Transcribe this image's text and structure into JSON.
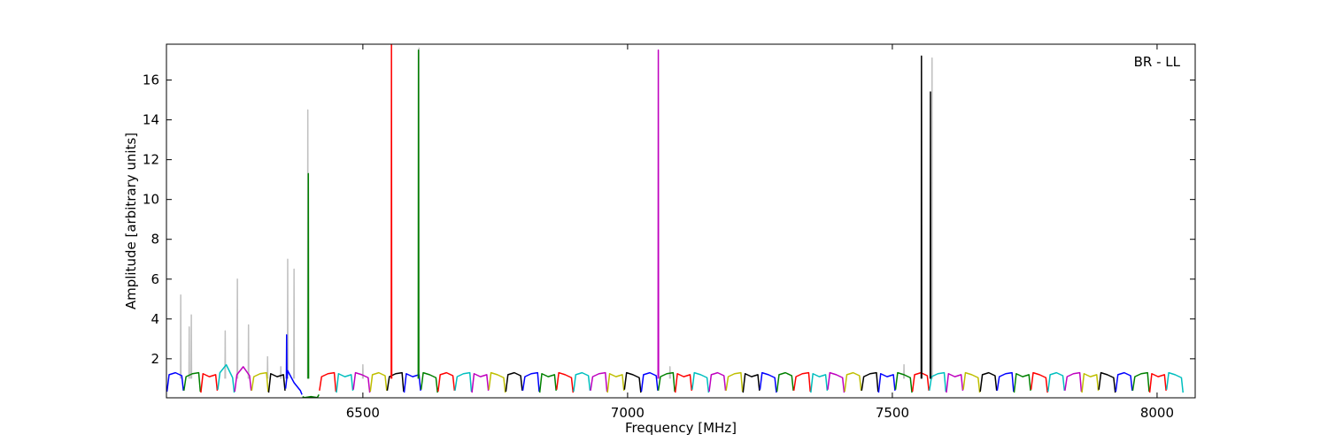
{
  "chart_data": {
    "type": "line",
    "xlabel": "Frequency [MHz]",
    "ylabel": "Amplitude [arbitrary units]",
    "annotation": "BR - LL",
    "xlim": [
      6129,
      8072
    ],
    "ylim": [
      0.04,
      17.8
    ],
    "xticks": [
      6500,
      7000,
      7500,
      8000
    ],
    "yticks": [
      2,
      4,
      6,
      8,
      10,
      12,
      14,
      16
    ],
    "grid": false,
    "series": [
      {
        "color": "#c0c0c0",
        "x": [
          6155.5,
          6156,
          6156.5,
          6157,
          6171.5,
          6172,
          6172.5,
          6173,
          6175.5,
          6176,
          6176.5,
          6177,
          6239.5,
          6240,
          6240.5,
          6241,
          6262.5,
          6263,
          6263.5,
          6264,
          6283.5,
          6284,
          6284.5,
          6285,
          6319.5,
          6320,
          6320.5,
          6321,
          6344.5,
          6345,
          6345.5,
          6346,
          6357.5,
          6358,
          6358.5,
          6359,
          6369.5,
          6370,
          6370.5,
          6371,
          6395.5,
          6396,
          6396.5,
          6397,
          6499.5,
          6500,
          6500.5,
          6501,
          6605.5,
          6606,
          6606.5,
          6607,
          7079.5,
          7080,
          7080.5,
          7081,
          7521.5,
          7522,
          7522.5,
          7523,
          7574.5,
          7575,
          7575.5
        ],
        "values": [
          1.0,
          5.2,
          1.0,
          null,
          1.0,
          3.6,
          1.0,
          null,
          1.0,
          4.2,
          1.0,
          null,
          1.0,
          3.4,
          1.0,
          null,
          1.0,
          6.0,
          1.0,
          null,
          1.0,
          3.7,
          1.0,
          null,
          1.0,
          2.1,
          1.0,
          null,
          1.0,
          1.6,
          1.0,
          null,
          1.0,
          7.0,
          1.0,
          null,
          1.0,
          6.5,
          1.0,
          null,
          1.0,
          14.5,
          1.0,
          null,
          1.0,
          1.7,
          1.0,
          null,
          1.0,
          17.6,
          1.0,
          null,
          1.0,
          1.6,
          1.0,
          null,
          1.0,
          1.7,
          1.0,
          null,
          1.0,
          17.1,
          1.0
        ]
      },
      {
        "color": "#0000ff",
        "x": [
          6130,
          6134,
          6146,
          6158,
          6161
        ],
        "values": [
          0.35,
          1.2,
          1.3,
          1.15,
          0.4
        ]
      },
      {
        "color": "#008000",
        "x": [
          6162,
          6166,
          6178,
          6190,
          6193
        ],
        "values": [
          0.4,
          1.1,
          1.25,
          1.3,
          0.35
        ]
      },
      {
        "color": "#ff0000",
        "x": [
          6194,
          6198,
          6210,
          6222,
          6225
        ],
        "values": [
          0.3,
          1.25,
          1.1,
          1.2,
          0.4
        ]
      },
      {
        "color": "#00bfbf",
        "x": [
          6226,
          6230,
          6242,
          6254,
          6257
        ],
        "values": [
          0.45,
          1.3,
          1.7,
          1.05,
          0.3
        ]
      },
      {
        "color": "#bf00bf",
        "x": [
          6258,
          6262,
          6274,
          6286,
          6289
        ],
        "values": [
          0.35,
          1.2,
          1.6,
          1.15,
          0.4
        ]
      },
      {
        "color": "#bfbf00",
        "x": [
          6290,
          6294,
          6306,
          6318,
          6321
        ],
        "values": [
          0.4,
          1.1,
          1.25,
          1.3,
          0.35
        ]
      },
      {
        "color": "#000000",
        "x": [
          6322,
          6326,
          6338,
          6350,
          6353
        ],
        "values": [
          0.3,
          1.25,
          1.1,
          1.2,
          0.4
        ]
      },
      {
        "color": "#0000ff",
        "x": [
          6354,
          6358,
          6370,
          6382,
          6385
        ],
        "values": [
          0.5,
          1.4,
          0.8,
          0.4,
          0.2
        ]
      },
      {
        "color": "#008000",
        "x": [
          6386,
          6390,
          6402,
          6414,
          6417
        ],
        "values": [
          0.1,
          0.05,
          0.1,
          0.05,
          0.2
        ]
      },
      {
        "color": "#ff0000",
        "x": [
          6418,
          6422,
          6434,
          6446,
          6449
        ],
        "values": [
          0.4,
          1.1,
          1.25,
          1.3,
          0.35
        ]
      },
      {
        "color": "#00bfbf",
        "x": [
          6450,
          6454,
          6466,
          6478,
          6481
        ],
        "values": [
          0.3,
          1.25,
          1.1,
          1.2,
          0.4
        ]
      },
      {
        "color": "#bf00bf",
        "x": [
          6482,
          6486,
          6498,
          6510,
          6513
        ],
        "values": [
          0.45,
          1.3,
          1.2,
          1.05,
          0.3
        ]
      },
      {
        "color": "#bfbf00",
        "x": [
          6514,
          6518,
          6530,
          6542,
          6545
        ],
        "values": [
          0.35,
          1.2,
          1.3,
          1.15,
          0.4
        ]
      },
      {
        "color": "#000000",
        "x": [
          6546,
          6550,
          6562,
          6574,
          6577
        ],
        "values": [
          0.4,
          1.1,
          1.25,
          1.3,
          0.35
        ]
      },
      {
        "color": "#0000ff",
        "x": [
          6578,
          6582,
          6594,
          6606,
          6609
        ],
        "values": [
          0.3,
          1.25,
          1.1,
          1.2,
          0.4
        ]
      },
      {
        "color": "#008000",
        "x": [
          6610,
          6614,
          6626,
          6638,
          6641
        ],
        "values": [
          0.45,
          1.3,
          1.2,
          1.05,
          0.3
        ]
      },
      {
        "color": "#ff0000",
        "x": [
          6642,
          6646,
          6658,
          6670,
          6673
        ],
        "values": [
          0.35,
          1.2,
          1.3,
          1.15,
          0.4
        ]
      },
      {
        "color": "#00bfbf",
        "x": [
          6674,
          6678,
          6690,
          6702,
          6705
        ],
        "values": [
          0.4,
          1.1,
          1.25,
          1.3,
          0.35
        ]
      },
      {
        "color": "#bf00bf",
        "x": [
          6706,
          6710,
          6722,
          6734,
          6737
        ],
        "values": [
          0.3,
          1.25,
          1.1,
          1.2,
          0.4
        ]
      },
      {
        "color": "#bfbf00",
        "x": [
          6738,
          6742,
          6754,
          6766,
          6769
        ],
        "values": [
          0.45,
          1.3,
          1.2,
          1.05,
          0.3
        ]
      },
      {
        "color": "#000000",
        "x": [
          6770,
          6774,
          6786,
          6798,
          6801
        ],
        "values": [
          0.35,
          1.2,
          1.3,
          1.15,
          0.4
        ]
      },
      {
        "color": "#0000ff",
        "x": [
          6802,
          6806,
          6818,
          6830,
          6833
        ],
        "values": [
          0.4,
          1.1,
          1.25,
          1.3,
          0.35
        ]
      },
      {
        "color": "#008000",
        "x": [
          6834,
          6838,
          6850,
          6862,
          6865
        ],
        "values": [
          0.3,
          1.25,
          1.1,
          1.2,
          0.4
        ]
      },
      {
        "color": "#ff0000",
        "x": [
          6866,
          6870,
          6882,
          6894,
          6897
        ],
        "values": [
          0.45,
          1.3,
          1.2,
          1.05,
          0.3
        ]
      },
      {
        "color": "#00bfbf",
        "x": [
          6898,
          6902,
          6914,
          6926,
          6929
        ],
        "values": [
          0.35,
          1.2,
          1.3,
          1.15,
          0.4
        ]
      },
      {
        "color": "#bf00bf",
        "x": [
          6930,
          6934,
          6946,
          6958,
          6961
        ],
        "values": [
          0.4,
          1.1,
          1.25,
          1.3,
          0.35
        ]
      },
      {
        "color": "#bfbf00",
        "x": [
          6962,
          6966,
          6978,
          6990,
          6993
        ],
        "values": [
          0.3,
          1.25,
          1.1,
          1.2,
          0.4
        ]
      },
      {
        "color": "#000000",
        "x": [
          6994,
          6998,
          7010,
          7022,
          7025
        ],
        "values": [
          0.45,
          1.3,
          1.2,
          1.05,
          0.3
        ]
      },
      {
        "color": "#0000ff",
        "x": [
          7026,
          7030,
          7042,
          7054,
          7057
        ],
        "values": [
          0.35,
          1.2,
          1.3,
          1.15,
          0.4
        ]
      },
      {
        "color": "#008000",
        "x": [
          7058,
          7062,
          7074,
          7086,
          7089
        ],
        "values": [
          0.4,
          1.1,
          1.25,
          1.3,
          0.35
        ]
      },
      {
        "color": "#ff0000",
        "x": [
          7090,
          7094,
          7106,
          7118,
          7121
        ],
        "values": [
          0.3,
          1.25,
          1.1,
          1.2,
          0.4
        ]
      },
      {
        "color": "#00bfbf",
        "x": [
          7122,
          7126,
          7138,
          7150,
          7153
        ],
        "values": [
          0.45,
          1.3,
          1.2,
          1.05,
          0.3
        ]
      },
      {
        "color": "#bf00bf",
        "x": [
          7154,
          7158,
          7170,
          7182,
          7185
        ],
        "values": [
          0.35,
          1.2,
          1.3,
          1.15,
          0.4
        ]
      },
      {
        "color": "#bfbf00",
        "x": [
          7186,
          7190,
          7202,
          7214,
          7217
        ],
        "values": [
          0.4,
          1.1,
          1.25,
          1.3,
          0.35
        ]
      },
      {
        "color": "#000000",
        "x": [
          7218,
          7222,
          7234,
          7246,
          7249
        ],
        "values": [
          0.3,
          1.25,
          1.1,
          1.2,
          0.4
        ]
      },
      {
        "color": "#0000ff",
        "x": [
          7250,
          7254,
          7266,
          7278,
          7281
        ],
        "values": [
          0.45,
          1.3,
          1.2,
          1.05,
          0.3
        ]
      },
      {
        "color": "#008000",
        "x": [
          7282,
          7286,
          7298,
          7310,
          7313
        ],
        "values": [
          0.35,
          1.2,
          1.3,
          1.15,
          0.4
        ]
      },
      {
        "color": "#ff0000",
        "x": [
          7314,
          7318,
          7330,
          7342,
          7345
        ],
        "values": [
          0.4,
          1.1,
          1.25,
          1.3,
          0.35
        ]
      },
      {
        "color": "#00bfbf",
        "x": [
          7346,
          7350,
          7362,
          7374,
          7377
        ],
        "values": [
          0.3,
          1.25,
          1.1,
          1.2,
          0.4
        ]
      },
      {
        "color": "#bf00bf",
        "x": [
          7378,
          7382,
          7394,
          7406,
          7409
        ],
        "values": [
          0.45,
          1.3,
          1.2,
          1.05,
          0.3
        ]
      },
      {
        "color": "#bfbf00",
        "x": [
          7410,
          7414,
          7426,
          7438,
          7441
        ],
        "values": [
          0.35,
          1.2,
          1.3,
          1.15,
          0.4
        ]
      },
      {
        "color": "#000000",
        "x": [
          7442,
          7446,
          7458,
          7470,
          7473
        ],
        "values": [
          0.4,
          1.1,
          1.25,
          1.3,
          0.35
        ]
      },
      {
        "color": "#0000ff",
        "x": [
          7474,
          7478,
          7490,
          7502,
          7505
        ],
        "values": [
          0.3,
          1.25,
          1.1,
          1.2,
          0.4
        ]
      },
      {
        "color": "#008000",
        "x": [
          7506,
          7510,
          7522,
          7534,
          7537
        ],
        "values": [
          0.45,
          1.3,
          1.2,
          1.05,
          0.3
        ]
      },
      {
        "color": "#ff0000",
        "x": [
          7538,
          7542,
          7554,
          7566,
          7569
        ],
        "values": [
          0.35,
          1.2,
          1.3,
          1.15,
          0.4
        ]
      },
      {
        "color": "#00bfbf",
        "x": [
          7570,
          7574,
          7586,
          7598,
          7601
        ],
        "values": [
          0.4,
          1.1,
          1.25,
          1.3,
          0.35
        ]
      },
      {
        "color": "#bf00bf",
        "x": [
          7602,
          7606,
          7618,
          7630,
          7633
        ],
        "values": [
          0.3,
          1.25,
          1.1,
          1.2,
          0.4
        ]
      },
      {
        "color": "#bfbf00",
        "x": [
          7634,
          7638,
          7650,
          7662,
          7665
        ],
        "values": [
          0.45,
          1.3,
          1.2,
          1.05,
          0.3
        ]
      },
      {
        "color": "#000000",
        "x": [
          7666,
          7670,
          7682,
          7694,
          7697
        ],
        "values": [
          0.35,
          1.2,
          1.3,
          1.15,
          0.4
        ]
      },
      {
        "color": "#0000ff",
        "x": [
          7698,
          7702,
          7714,
          7726,
          7729
        ],
        "values": [
          0.4,
          1.1,
          1.25,
          1.3,
          0.35
        ]
      },
      {
        "color": "#008000",
        "x": [
          7730,
          7734,
          7746,
          7758,
          7761
        ],
        "values": [
          0.3,
          1.25,
          1.1,
          1.2,
          0.4
        ]
      },
      {
        "color": "#ff0000",
        "x": [
          7762,
          7766,
          7778,
          7790,
          7793
        ],
        "values": [
          0.45,
          1.3,
          1.2,
          1.05,
          0.3
        ]
      },
      {
        "color": "#00bfbf",
        "x": [
          7794,
          7798,
          7810,
          7822,
          7825
        ],
        "values": [
          0.35,
          1.2,
          1.3,
          1.15,
          0.4
        ]
      },
      {
        "color": "#bf00bf",
        "x": [
          7826,
          7830,
          7842,
          7854,
          7857
        ],
        "values": [
          0.4,
          1.1,
          1.25,
          1.3,
          0.35
        ]
      },
      {
        "color": "#bfbf00",
        "x": [
          7858,
          7862,
          7874,
          7886,
          7889
        ],
        "values": [
          0.3,
          1.25,
          1.1,
          1.2,
          0.4
        ]
      },
      {
        "color": "#000000",
        "x": [
          7890,
          7894,
          7906,
          7918,
          7921
        ],
        "values": [
          0.45,
          1.3,
          1.2,
          1.05,
          0.3
        ]
      },
      {
        "color": "#0000ff",
        "x": [
          7922,
          7926,
          7938,
          7950,
          7953
        ],
        "values": [
          0.35,
          1.2,
          1.3,
          1.15,
          0.4
        ]
      },
      {
        "color": "#008000",
        "x": [
          7954,
          7958,
          7970,
          7982,
          7985
        ],
        "values": [
          0.4,
          1.1,
          1.25,
          1.3,
          0.35
        ]
      },
      {
        "color": "#ff0000",
        "x": [
          7986,
          7990,
          8002,
          8014,
          8017
        ],
        "values": [
          0.3,
          1.25,
          1.1,
          1.2,
          0.4
        ]
      },
      {
        "color": "#00bfbf",
        "x": [
          8018,
          8022,
          8034,
          8046,
          8049
        ],
        "values": [
          0.45,
          1.3,
          1.2,
          1.05,
          0.3
        ]
      },
      {
        "color": "#ff0000",
        "x": [
          6553.5,
          6554,
          6554.5
        ],
        "values": [
          1.0,
          17.8,
          1.0
        ]
      },
      {
        "color": "#008000",
        "x": [
          6604.5,
          6605,
          6605.5
        ],
        "values": [
          1.0,
          17.5,
          1.0
        ]
      },
      {
        "color": "#bf00bf",
        "x": [
          7057.5,
          7058,
          7058.5
        ],
        "values": [
          1.0,
          17.5,
          1.0
        ]
      },
      {
        "color": "#000000",
        "x": [
          7554.5,
          7555,
          7555.5
        ],
        "values": [
          1.0,
          17.2,
          1.0
        ]
      },
      {
        "color": "#000000",
        "x": [
          7571.5,
          7572,
          7572.5
        ],
        "values": [
          1.0,
          15.4,
          1.0
        ]
      },
      {
        "color": "#0000ff",
        "x": [
          6355.5,
          6356,
          6356.5
        ],
        "values": [
          1.0,
          3.2,
          1.0
        ]
      },
      {
        "color": "#008000",
        "x": [
          6396.5,
          6397,
          6397.5
        ],
        "values": [
          1.0,
          11.3,
          1.0
        ]
      }
    ]
  }
}
